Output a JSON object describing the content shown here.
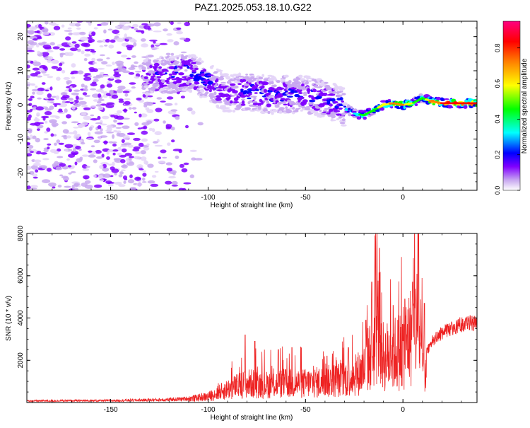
{
  "figure_title": "PAZ1.2025.053.18.10.G22",
  "chart_data": [
    {
      "type": "heatmap",
      "title": "PAZ1.2025.053.18.10.G22",
      "xlabel": "Height of straight line (km)",
      "ylabel": "Frequency (Hz)",
      "xlim": [
        -193,
        38
      ],
      "ylim": [
        -25,
        24.5
      ],
      "xticks": [
        -150,
        -100,
        -50,
        0
      ],
      "yticks": [
        -20,
        -10,
        0,
        10,
        20
      ],
      "xtick_labels": [
        "-150",
        "-100",
        "-50",
        "0"
      ],
      "ytick_labels": [
        "-20",
        "-10",
        "0",
        "10",
        "20"
      ],
      "colorbar": {
        "label": "Normalized spectral amplitude",
        "range": [
          0,
          0.95
        ],
        "ticks": [
          0.0,
          0.2,
          0.4,
          0.6,
          0.8
        ],
        "tick_labels": [
          "0.0",
          "0.2",
          "0.4",
          "0.6",
          "0.8"
        ],
        "colormap": [
          "#ffffff",
          "#c8a8f0",
          "#8000ff",
          "#0000ff",
          "#00ffff",
          "#00ff00",
          "#ffff00",
          "#ff8000",
          "#ff0000",
          "#ff0080"
        ]
      },
      "ridge": {
        "x": [
          -133,
          -120,
          -110,
          -100,
          -90,
          -80,
          -70,
          -60,
          -50,
          -40,
          -32,
          -25,
          -20,
          -15,
          -10,
          -5,
          0,
          5,
          10,
          15,
          20,
          25,
          30,
          38
        ],
        "freq": [
          8.5,
          9,
          9.5,
          7,
          3,
          4,
          3,
          3,
          3,
          1.5,
          0,
          -2.5,
          -3,
          -1.5,
          0,
          0.5,
          0,
          0.5,
          2,
          1,
          0.5,
          0.5,
          0.5,
          0.5
        ],
        "amp": [
          0.25,
          0.3,
          0.35,
          0.3,
          0.25,
          0.3,
          0.28,
          0.3,
          0.3,
          0.3,
          0.3,
          0.45,
          0.5,
          0.55,
          0.65,
          0.75,
          0.75,
          0.6,
          0.5,
          0.8,
          0.85,
          0.9,
          0.95,
          0.9
        ]
      }
    },
    {
      "type": "line",
      "xlabel": "Height of straight line (km)",
      "ylabel": "SNR (10 * v/v)",
      "xlim": [
        -193,
        38
      ],
      "ylim": [
        0,
        8000
      ],
      "xticks": [
        -150,
        -100,
        -50,
        0
      ],
      "yticks": [
        2000,
        4000,
        6000,
        8000
      ],
      "xtick_labels": [
        "-150",
        "-100",
        "-50",
        "0"
      ],
      "ytick_labels": [
        "2000",
        "4000",
        "6000",
        "8000"
      ],
      "series": [
        {
          "name": "SNR",
          "color": "#ee2222",
          "envelope_x": [
            -193,
            -150,
            -120,
            -110,
            -100,
            -90,
            -80,
            -70,
            -60,
            -50,
            -40,
            -30,
            -25,
            -20,
            -17,
            -15,
            -12,
            -10,
            -5,
            0,
            3,
            5,
            7,
            10,
            12,
            15,
            20,
            25,
            30,
            38
          ],
          "envelope_y": [
            100,
            120,
            180,
            250,
            400,
            900,
            1300,
            1200,
            1300,
            1300,
            1400,
            1600,
            1800,
            2200,
            3200,
            3800,
            5500,
            3000,
            3300,
            3600,
            4300,
            4700,
            5500,
            2700,
            2400,
            2900,
            3300,
            3500,
            3700,
            3800
          ],
          "peaks_x": [
            -81,
            -76,
            -64,
            -57,
            -39,
            -28,
            -19,
            -16,
            -12,
            -5,
            1,
            5,
            8,
            11
          ],
          "peaks_y": [
            3200,
            2900,
            2500,
            2600,
            2200,
            2600,
            3900,
            5700,
            7300,
            4600,
            4900,
            5700,
            8000,
            4700
          ]
        }
      ]
    }
  ]
}
